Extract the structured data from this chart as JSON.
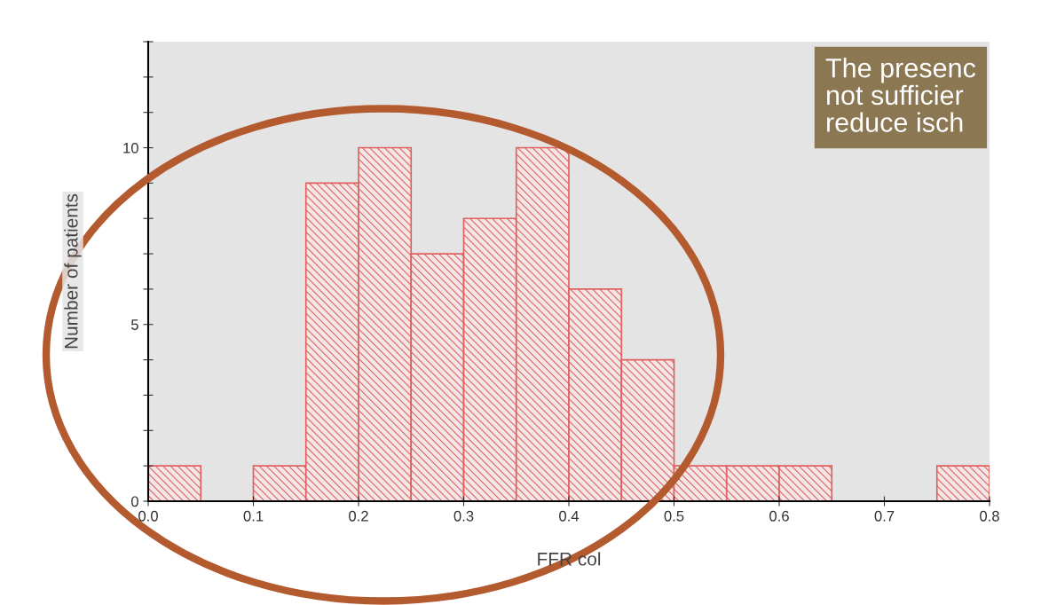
{
  "chart_data": {
    "type": "histogram",
    "xlabel": "FFR col",
    "ylabel": "Number of patients",
    "bins": [
      0,
      0.05,
      0.1,
      0.15,
      0.2,
      0.25,
      0.3,
      0.35,
      0.4,
      0.45,
      0.5,
      0.55,
      0.6,
      0.65,
      0.7,
      0.75,
      0.8
    ],
    "values": [
      1,
      0,
      1,
      9,
      10,
      7,
      8,
      10,
      6,
      4,
      1,
      1,
      1,
      0,
      0,
      1
    ],
    "color": "#e06060",
    "xlim": [
      0,
      0.8
    ],
    "xticks": [
      {
        "value": 0,
        "label": "0.0"
      },
      0.1,
      0.2,
      0.3,
      0.4,
      0.5,
      0.6,
      0.7,
      0.8
    ],
    "ylim": [
      0,
      13
    ],
    "yticks": [
      0,
      {
        "value": 1,
        "label": null
      },
      {
        "value": 2,
        "label": null
      },
      {
        "value": 3,
        "label": null
      },
      {
        "value": 4,
        "label": null
      },
      5,
      {
        "value": 6,
        "label": null
      },
      {
        "value": 7,
        "label": null
      },
      {
        "value": 8,
        "label": null
      },
      {
        "value": 9,
        "label": null
      },
      10,
      {
        "value": 11,
        "label": null
      },
      {
        "value": 12,
        "label": null
      },
      {
        "value": 13,
        "label": null
      }
    ],
    "annotations": [
      "The presenc\nnot sufficier\nreduce isch"
    ]
  }
}
